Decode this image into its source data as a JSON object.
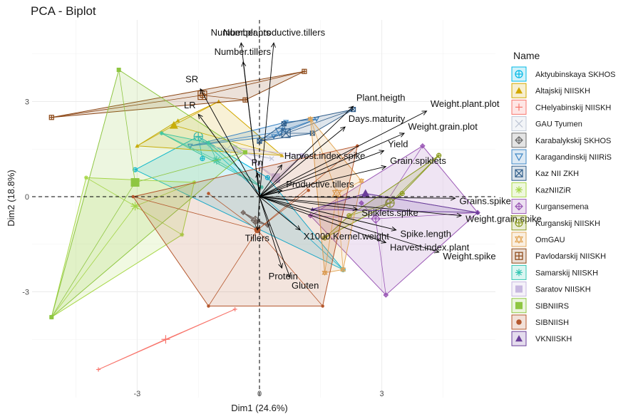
{
  "chart_data": {
    "type": "biplot",
    "title": "PCA - Biplot",
    "xlabel": "Dim1 (24.6%)",
    "ylabel": "Dim2 (18.8%)",
    "xlim": [
      -5.3,
      5.6
    ],
    "ylim": [
      -6.6,
      5.4
    ],
    "xticks": [
      -3,
      0,
      3
    ],
    "yticks": [
      -3,
      0,
      3
    ],
    "legend_title": "Name",
    "legend_position": "right",
    "variables": [
      {
        "name": "Number.plants",
        "x": -0.45,
        "y": 4.85
      },
      {
        "name": "Number.productive.tillers",
        "x": 0.35,
        "y": 4.85
      },
      {
        "name": "Number.tillers",
        "x": -0.4,
        "y": 4.25
      },
      {
        "name": "SR",
        "x": -1.45,
        "y": 3.4
      },
      {
        "name": "LR",
        "x": -1.5,
        "y": 2.6
      },
      {
        "name": "Plant.heigth",
        "x": 2.3,
        "y": 2.85
      },
      {
        "name": "Weight.plant.plot",
        "x": 4.1,
        "y": 2.7
      },
      {
        "name": "Days.maturity",
        "x": 2.1,
        "y": 2.2
      },
      {
        "name": "Weight.grain.plot",
        "x": 3.55,
        "y": 2.0
      },
      {
        "name": "Yield",
        "x": 3.05,
        "y": 1.45
      },
      {
        "name": "Harvest.index.spike",
        "x": 0.55,
        "y": 1.0
      },
      {
        "name": "Grain.spiklets",
        "x": 3.1,
        "y": 0.95
      },
      {
        "name": "Pn",
        "x": -0.05,
        "y": 0.75
      },
      {
        "name": "Productive.tillers",
        "x": 0.55,
        "y": 0.2
      },
      {
        "name": "Grains.spike",
        "x": 4.8,
        "y": -0.05
      },
      {
        "name": "Spiklets.spike",
        "x": 2.4,
        "y": -0.4
      },
      {
        "name": "Weight.grain.spike",
        "x": 4.95,
        "y": -0.6
      },
      {
        "name": "Spike.length",
        "x": 3.35,
        "y": -1.05
      },
      {
        "name": "X1000.Kernel.weight",
        "x": 1.0,
        "y": -1.05
      },
      {
        "name": "Tillers",
        "x": -0.05,
        "y": -1.05
      },
      {
        "name": "Harvest.index.plant",
        "x": 3.1,
        "y": -1.45
      },
      {
        "name": "Weight.spike",
        "x": 4.4,
        "y": -1.75
      },
      {
        "name": "Protein",
        "x": 0.55,
        "y": -2.25
      },
      {
        "name": "Gluten",
        "x": 0.75,
        "y": -2.55
      }
    ],
    "groups": [
      {
        "name": "Aktyubinskaya SKHOS",
        "color": "#00B8E5",
        "symbol": "circle-plus",
        "centroid": [
          -1.5,
          1.9
        ],
        "points": [
          [
            -3.05,
            0.85
          ],
          [
            2.05,
            -2.3
          ],
          [
            0.2,
            0.6
          ],
          [
            -1.4,
            1.2
          ]
        ]
      },
      {
        "name": "Altajskij NIISKH",
        "color": "#D2A800",
        "symbol": "triangle",
        "centroid": [
          -2.1,
          2.25
        ],
        "points": [
          [
            -3.0,
            1.6
          ],
          [
            -1.0,
            3.0
          ],
          [
            0.55,
            1.3
          ],
          [
            -2.0,
            2.4
          ]
        ]
      },
      {
        "name": "CHelyabinskij NIISKH",
        "color": "#F8766D",
        "symbol": "plus",
        "centroid": [
          -2.3,
          -4.5
        ],
        "points": [
          [
            -3.95,
            -5.45
          ],
          [
            -2.3,
            -4.5
          ],
          [
            -0.6,
            -3.55
          ]
        ]
      },
      {
        "name": "GAU Tyumen",
        "color": "#BFC7D6",
        "symbol": "x",
        "centroid": [
          -0.8,
          1.5
        ],
        "points": [
          [
            -1.2,
            1.6
          ],
          [
            -0.5,
            1.4
          ],
          [
            0.3,
            1.2
          ]
        ]
      },
      {
        "name": "Karabalykskij SKHOS",
        "color": "#6B6B6B",
        "symbol": "diamond-plus",
        "centroid": [
          -0.1,
          -0.75
        ],
        "points": [
          [
            -0.4,
            -0.5
          ],
          [
            0.2,
            -0.9
          ],
          [
            -0.1,
            -0.8
          ]
        ]
      },
      {
        "name": "Karagandinskij NIIRiS",
        "color": "#3E86C4",
        "symbol": "triangle-down",
        "centroid": [
          0.5,
          2.05
        ],
        "points": [
          [
            -1.7,
            1.6
          ],
          [
            0.65,
            2.35
          ],
          [
            1.4,
            2.45
          ],
          [
            0.35,
            1.9
          ]
        ]
      },
      {
        "name": "Kaz NII ZKH",
        "color": "#2F5D8A",
        "symbol": "square-x",
        "centroid": [
          0.65,
          2.0
        ],
        "points": [
          [
            0.0,
            1.75
          ],
          [
            1.3,
            2.0
          ],
          [
            2.3,
            2.75
          ],
          [
            0.6,
            2.3
          ]
        ]
      },
      {
        "name": "KazNIIZiR",
        "color": "#A8D84A",
        "symbol": "asterisk",
        "centroid": [
          -3.05,
          -0.3
        ],
        "points": [
          [
            -4.25,
            0.6
          ],
          [
            -5.1,
            -3.8
          ],
          [
            -1.9,
            -1.2
          ],
          [
            -1.6,
            0.45
          ]
        ]
      },
      {
        "name": "Kurgansemena",
        "color": "#9B59B6",
        "symbol": "diamond-plus",
        "centroid": [
          2.85,
          -0.7
        ],
        "points": [
          [
            1.25,
            -0.6
          ],
          [
            3.1,
            -3.1
          ],
          [
            4.0,
            1.6
          ],
          [
            5.35,
            -0.5
          ],
          [
            2.5,
            -0.2
          ]
        ]
      },
      {
        "name": "Kurganskij NIISKH",
        "color": "#8A9A1C",
        "symbol": "circle-plus",
        "centroid": [
          3.2,
          -0.2
        ],
        "points": [
          [
            1.6,
            -1.3
          ],
          [
            4.4,
            1.3
          ],
          [
            3.5,
            0.1
          ],
          [
            2.2,
            -0.6
          ]
        ]
      },
      {
        "name": "OmGAU",
        "color": "#E3A85A",
        "symbol": "star",
        "centroid": [
          1.9,
          0.1
        ],
        "points": [
          [
            1.25,
            2.45
          ],
          [
            1.6,
            -2.4
          ],
          [
            2.05,
            -2.3
          ],
          [
            2.5,
            0.5
          ]
        ]
      },
      {
        "name": "Pavlodarskij NIISKH",
        "color": "#8B4513",
        "symbol": "square-plus",
        "centroid": [
          -1.4,
          3.2
        ],
        "points": [
          [
            -5.1,
            2.5
          ],
          [
            1.1,
            3.95
          ],
          [
            -0.35,
            3.05
          ],
          [
            -1.4,
            3.2
          ]
        ]
      },
      {
        "name": "Samarskij NIISKH",
        "color": "#34C6B2",
        "symbol": "asterisk",
        "centroid": [
          -1.05,
          1.15
        ],
        "points": [
          [
            -2.4,
            2.0
          ],
          [
            -1.25,
            1.7
          ],
          [
            0.05,
            0.3
          ]
        ]
      },
      {
        "name": "Saratov NIISKH",
        "color": "#C7B8E0",
        "symbol": "square",
        "centroid": [
          0.4,
          0.6
        ],
        "points": [
          [
            -0.6,
            1.55
          ],
          [
            0.45,
            0.5
          ],
          [
            1.05,
            1.3
          ]
        ]
      },
      {
        "name": "SIBNIIRS",
        "color": "#8EC641",
        "symbol": "square",
        "centroid": [
          -3.05,
          0.45
        ],
        "points": [
          [
            -3.45,
            4.0
          ],
          [
            -5.1,
            -3.8
          ],
          [
            -0.35,
            1.4
          ],
          [
            -3.05,
            0.45
          ]
        ]
      },
      {
        "name": "SIBNIISH",
        "color": "#B5582E",
        "symbol": "circle",
        "centroid": [
          -0.05,
          -1.05
        ],
        "points": [
          [
            -3.1,
            0.0
          ],
          [
            -1.25,
            -3.45
          ],
          [
            1.55,
            -3.45
          ],
          [
            2.4,
            1.6
          ],
          [
            1.2,
            0.2
          ],
          [
            -1.25,
            0.1
          ]
        ]
      },
      {
        "name": "VKNIISKH",
        "color": "#6A3D9A",
        "symbol": "triangle",
        "centroid": [
          2.6,
          0.1
        ],
        "points": [
          [
            1.3,
            -0.4
          ],
          [
            2.6,
            0.1
          ],
          [
            5.35,
            -0.5
          ]
        ]
      }
    ]
  }
}
